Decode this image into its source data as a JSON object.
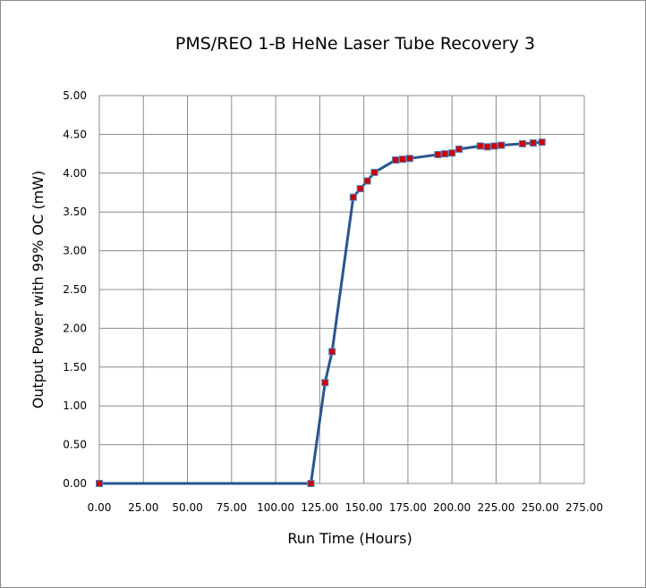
{
  "chart_data": {
    "type": "line",
    "title": "PMS/REO 1-B HeNe Laser Tube Recovery 3",
    "xlabel": "Run Time (Hours)",
    "ylabel": "Output Power with 99% OC (mW)",
    "xlim": [
      0,
      275
    ],
    "ylim": [
      0,
      5
    ],
    "x_ticks": [
      "0.00",
      "25.00",
      "50.00",
      "75.00",
      "100.00",
      "125.00",
      "150.00",
      "175.00",
      "200.00",
      "225.00",
      "250.00",
      "275.00"
    ],
    "y_ticks": [
      "0.00",
      "0.50",
      "1.00",
      "1.50",
      "2.00",
      "2.50",
      "3.00",
      "3.50",
      "4.00",
      "4.50",
      "5.00"
    ],
    "grid": true,
    "legend": "none",
    "line_color": "#2a5590",
    "marker_color": "#cc0000",
    "marker_edge_color": "#4f81bd",
    "series": [
      {
        "x": [
          0,
          120,
          128,
          132,
          144,
          148,
          152,
          156,
          168,
          172,
          176,
          192,
          196,
          200,
          204,
          216,
          220,
          224,
          228,
          240,
          246,
          251
        ],
        "y": [
          0,
          0,
          1.3,
          1.7,
          3.69,
          3.8,
          3.9,
          4.01,
          4.17,
          4.18,
          4.19,
          4.24,
          4.25,
          4.26,
          4.31,
          4.35,
          4.34,
          4.35,
          4.36,
          4.38,
          4.39,
          4.4
        ]
      }
    ]
  }
}
